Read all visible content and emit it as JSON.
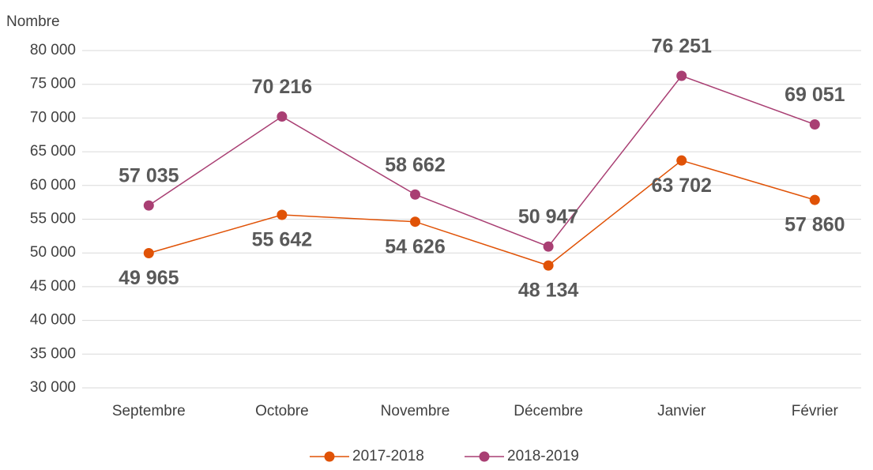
{
  "chart_data": {
    "type": "line",
    "y_axis_label": "Nombre",
    "categories": [
      "Septembre",
      "Octobre",
      "Novembre",
      "Décembre",
      "Janvier",
      "Février"
    ],
    "series": [
      {
        "name": "2017-2018",
        "color": "#e05206",
        "values": [
          49965,
          55642,
          54626,
          48134,
          63702,
          57860
        ],
        "value_labels": [
          "49 965",
          "55 642",
          "54 626",
          "48 134",
          "63 702",
          "57 860"
        ]
      },
      {
        "name": "2018-2019",
        "color": "#a93f73",
        "values": [
          57035,
          70216,
          58662,
          50947,
          76251,
          69051
        ],
        "value_labels": [
          "57 035",
          "70 216",
          "58 662",
          "50 947",
          "76 251",
          "69 051"
        ]
      }
    ],
    "ylim": [
      30000,
      80000
    ],
    "yticks": [
      {
        "value": 30000,
        "label": "30 000"
      },
      {
        "value": 35000,
        "label": "35 000"
      },
      {
        "value": 40000,
        "label": "40 000"
      },
      {
        "value": 45000,
        "label": "45 000"
      },
      {
        "value": 50000,
        "label": "50 000"
      },
      {
        "value": 55000,
        "label": "55 000"
      },
      {
        "value": 60000,
        "label": "60 000"
      },
      {
        "value": 65000,
        "label": "65 000"
      },
      {
        "value": 70000,
        "label": "70 000"
      },
      {
        "value": 75000,
        "label": "75 000"
      },
      {
        "value": 80000,
        "label": "80 000"
      }
    ],
    "grid": true,
    "legend": "bottom"
  }
}
